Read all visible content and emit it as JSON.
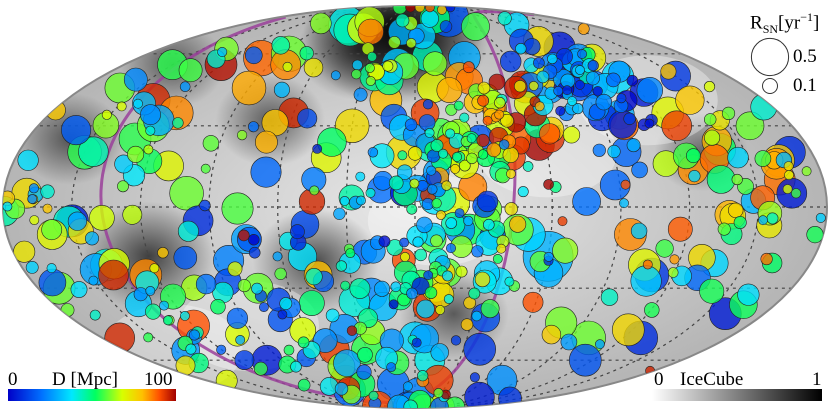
{
  "chart_data": {
    "type": "scatter",
    "projection": "mollweide",
    "grid": true,
    "title": "",
    "background_map": {
      "label": "IceCube",
      "range": [
        "0",
        "1"
      ],
      "colormap": "white-to-black",
      "colorbar_position": "bottom-right",
      "hotspots": [
        {
          "lon": 20,
          "lat": 72,
          "strength": 1.0
        },
        {
          "lon": -5,
          "lat": 65,
          "strength": 0.55
        },
        {
          "lon": 40,
          "lat": 62,
          "strength": 0.45
        },
        {
          "lon": 70,
          "lat": 32,
          "strength": 0.35
        },
        {
          "lon": 120,
          "lat": -18,
          "strength": 0.55
        },
        {
          "lon": 45,
          "lat": -20,
          "strength": 0.5
        },
        {
          "lon": 150,
          "lat": 55,
          "strength": 0.3
        },
        {
          "lon": -20,
          "lat": -40,
          "strength": 0.35
        },
        {
          "lon": -130,
          "lat": 20,
          "strength": 0.2
        },
        {
          "lon": 160,
          "lat": 25,
          "strength": 0.35
        }
      ]
    },
    "color_axis": {
      "label": "D [Mpc]",
      "range": [
        "0",
        "100"
      ],
      "colorbar_position": "bottom-left"
    },
    "size_legend": {
      "title_main": "R",
      "title_sub": "SN",
      "title_bracket_open": "[yr",
      "title_sup": "−1",
      "title_bracket_close": "]",
      "entries": [
        {
          "label": "0.5",
          "rate": 0.5
        },
        {
          "label": "0.1",
          "rate": 0.1
        }
      ],
      "position": "top-right"
    },
    "supergalactic_plane": {
      "pole_lon": 47,
      "pole_lat": 6
    },
    "clusters": [
      {
        "lon": -95,
        "lat": 45,
        "sigma": 12,
        "count": 70,
        "dmin": 0,
        "dmax": 45
      },
      {
        "lon": -45,
        "lat": 35,
        "sigma": 10,
        "count": 40,
        "dmin": 60,
        "dmax": 100
      },
      {
        "lon": -20,
        "lat": 20,
        "sigma": 9,
        "count": 35,
        "dmin": 40,
        "dmax": 80
      },
      {
        "lon": 10,
        "lat": 5,
        "sigma": 16,
        "count": 45,
        "dmin": 5,
        "dmax": 50
      },
      {
        "lon": 5,
        "lat": -30,
        "sigma": 18,
        "count": 45,
        "dmin": 10,
        "dmax": 60
      },
      {
        "lon": -30,
        "lat": -15,
        "sigma": 14,
        "count": 35,
        "dmin": 20,
        "dmax": 80
      },
      {
        "lon": 70,
        "lat": -45,
        "sigma": 18,
        "count": 35,
        "dmin": 5,
        "dmax": 70
      },
      {
        "lon": 140,
        "lat": -30,
        "sigma": 18,
        "count": 30,
        "dmin": 10,
        "dmax": 80
      },
      {
        "lon": -140,
        "lat": -10,
        "sigma": 20,
        "count": 35,
        "dmin": 30,
        "dmax": 90
      },
      {
        "lon": 165,
        "lat": -5,
        "sigma": 15,
        "count": 20,
        "dmin": 20,
        "dmax": 80
      },
      {
        "lon": 20,
        "lat": 55,
        "sigma": 12,
        "count": 25,
        "dmin": 20,
        "dmax": 70
      },
      {
        "lon": -150,
        "lat": 20,
        "sigma": 15,
        "count": 25,
        "dmin": 30,
        "dmax": 90
      },
      {
        "lon": 120,
        "lat": 30,
        "sigma": 18,
        "count": 25,
        "dmin": 10,
        "dmax": 70
      },
      {
        "lon": 0,
        "lat": 0,
        "sigma": 55,
        "count": 140,
        "dmin": 0,
        "dmax": 100
      }
    ],
    "points": [
      {
        "lon": -45,
        "lat": 80,
        "D": 15,
        "rate": 0.6
      },
      {
        "lon": -25,
        "lat": 79,
        "D": 52,
        "rate": 0.3
      },
      {
        "lon": -60,
        "lat": 74,
        "D": 56,
        "rate": 0.25
      },
      {
        "lon": -95,
        "lat": 66,
        "D": 75,
        "rate": 0.3
      },
      {
        "lon": -80,
        "lat": 50,
        "D": 78,
        "rate": 0.25
      },
      {
        "lon": -115,
        "lat": 58,
        "D": 72,
        "rate": 0.25
      },
      {
        "lon": -125,
        "lat": 35,
        "D": 70,
        "rate": 0.35
      },
      {
        "lon": -125,
        "lat": 30,
        "D": 92,
        "rate": 0.3
      },
      {
        "lon": -60,
        "lat": 45,
        "D": 90,
        "rate": 0.3
      },
      {
        "lon": -100,
        "lat": 30,
        "D": 88,
        "rate": 0.25
      },
      {
        "lon": -70,
        "lat": 50,
        "D": 70,
        "rate": 0.2
      },
      {
        "lon": -160,
        "lat": 30,
        "D": 60,
        "rate": 0.25
      },
      {
        "lon": -165,
        "lat": 5,
        "D": 5,
        "rate": 0.3
      },
      {
        "lon": -160,
        "lat": -40,
        "D": 5,
        "rate": 0.35
      },
      {
        "lon": -130,
        "lat": -50,
        "D": 8,
        "rate": 0.4
      },
      {
        "lon": -115,
        "lat": -60,
        "D": 15,
        "rate": 0.35
      },
      {
        "lon": -110,
        "lat": -25,
        "D": 10,
        "rate": 0.4
      },
      {
        "lon": -100,
        "lat": -50,
        "D": 60,
        "rate": 0.4
      },
      {
        "lon": -75,
        "lat": -70,
        "D": 25,
        "rate": 0.3
      },
      {
        "lon": -95,
        "lat": -10,
        "D": 85,
        "rate": 0.35
      },
      {
        "lon": -88,
        "lat": 8,
        "D": 18,
        "rate": 0.3
      },
      {
        "lon": -75,
        "lat": 2,
        "D": 20,
        "rate": 0.25
      },
      {
        "lon": -60,
        "lat": -18,
        "D": 30,
        "rate": 1.0
      },
      {
        "lon": -50,
        "lat": -10,
        "D": 35,
        "rate": 0.4
      },
      {
        "lon": -30,
        "lat": 25,
        "D": 15,
        "rate": 0.25
      },
      {
        "lon": -10,
        "lat": -30,
        "D": 70,
        "rate": 0.25
      },
      {
        "lon": 5,
        "lat": 20,
        "D": 75,
        "rate": 0.45
      },
      {
        "lon": 15,
        "lat": 40,
        "D": 80,
        "rate": 0.35
      },
      {
        "lon": -5,
        "lat": 35,
        "D": 92,
        "rate": 0.25
      },
      {
        "lon": 30,
        "lat": 30,
        "D": 75,
        "rate": 0.4
      },
      {
        "lon": 40,
        "lat": 18,
        "D": 70,
        "rate": 0.3
      },
      {
        "lon": 60,
        "lat": 35,
        "D": 95,
        "rate": 0.3
      },
      {
        "lon": 45,
        "lat": 2,
        "D": 95,
        "rate": 0.2
      },
      {
        "lon": 50,
        "lat": -55,
        "D": 92,
        "rate": 0.3
      },
      {
        "lon": 45,
        "lat": -25,
        "D": 80,
        "rate": 0.25
      },
      {
        "lon": 75,
        "lat": -30,
        "D": 60,
        "rate": 0.3
      },
      {
        "lon": 95,
        "lat": -5,
        "D": 8,
        "rate": 0.3
      },
      {
        "lon": 100,
        "lat": 5,
        "D": 60,
        "rate": 0.4
      },
      {
        "lon": 110,
        "lat": 15,
        "D": 70,
        "rate": 0.3
      },
      {
        "lon": 130,
        "lat": 25,
        "D": 55,
        "rate": 0.35
      },
      {
        "lon": 135,
        "lat": 40,
        "D": 95,
        "rate": 0.4
      },
      {
        "lon": 118,
        "lat": 35,
        "D": 85,
        "rate": 0.4
      },
      {
        "lon": 150,
        "lat": 20,
        "D": 55,
        "rate": 0.4
      },
      {
        "lon": 125,
        "lat": 30,
        "D": 60,
        "rate": 0.35
      },
      {
        "lon": 160,
        "lat": 45,
        "D": 60,
        "rate": 0.3
      },
      {
        "lon": 150,
        "lat": 55,
        "D": 55,
        "rate": 0.3
      },
      {
        "lon": 120,
        "lat": 55,
        "D": 98,
        "rate": 0.35
      },
      {
        "lon": 100,
        "lat": 58,
        "D": 88,
        "rate": 0.45
      },
      {
        "lon": 70,
        "lat": 75,
        "D": 40,
        "rate": 0.5
      },
      {
        "lon": 60,
        "lat": 72,
        "D": 45,
        "rate": 0.35
      },
      {
        "lon": 90,
        "lat": 45,
        "D": 82,
        "rate": 0.4
      },
      {
        "lon": 85,
        "lat": 60,
        "D": 60,
        "rate": 0.45
      },
      {
        "lon": 80,
        "lat": 55,
        "D": 85,
        "rate": 0.3
      },
      {
        "lon": 150,
        "lat": -5,
        "D": 5,
        "rate": 0.35
      },
      {
        "lon": 140,
        "lat": -25,
        "D": 95,
        "rate": 0.3
      },
      {
        "lon": 125,
        "lat": -25,
        "D": 85,
        "rate": 0.35
      },
      {
        "lon": 120,
        "lat": -45,
        "D": 90,
        "rate": 0.35
      },
      {
        "lon": 160,
        "lat": -10,
        "D": 70,
        "rate": 0.3
      },
      {
        "lon": 170,
        "lat": 5,
        "D": 75,
        "rate": 0.3
      },
      {
        "lon": 170,
        "lat": -30,
        "D": 60,
        "rate": 0.35
      },
      {
        "lon": 170,
        "lat": -50,
        "D": 95,
        "rate": 0.3
      },
      {
        "lon": 100,
        "lat": -60,
        "D": 5,
        "rate": 0.3
      },
      {
        "lon": 60,
        "lat": -70,
        "D": 90,
        "rate": 0.3
      },
      {
        "lon": 20,
        "lat": -72,
        "D": 20,
        "rate": 0.35
      },
      {
        "lon": -10,
        "lat": -60,
        "D": 40,
        "rate": 0.3
      },
      {
        "lon": -20,
        "lat": -70,
        "D": 92,
        "rate": 0.3
      },
      {
        "lon": -40,
        "lat": -55,
        "D": 10,
        "rate": 0.35
      },
      {
        "lon": 0,
        "lat": -50,
        "D": 35,
        "rate": 0.35
      },
      {
        "lon": 30,
        "lat": -55,
        "D": 55,
        "rate": 0.3
      },
      {
        "lon": -135,
        "lat": 10,
        "D": 50,
        "rate": 0.25
      },
      {
        "lon": -170,
        "lat": 20,
        "D": 8,
        "rate": 0.35
      },
      {
        "lon": -150,
        "lat": 50,
        "D": 10,
        "rate": 0.3
      }
    ]
  }
}
